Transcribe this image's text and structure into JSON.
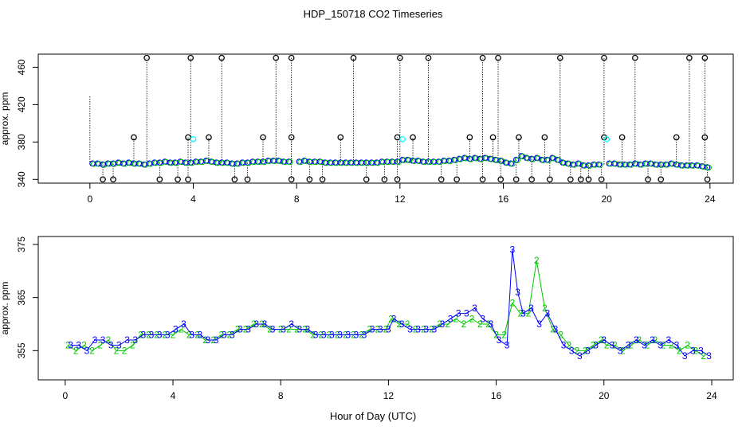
{
  "title": "HDP_150718  CO2 Timeseries",
  "xlabel": "Hour of Day (UTC)",
  "colors": {
    "series2": "#00c800",
    "series3": "#0000ff",
    "flagged": "#00ffff",
    "outlier": "#000000",
    "axis": "#000000"
  },
  "chart_data": [
    {
      "type": "scatter",
      "title": "",
      "xlabel": "",
      "ylabel": "approx. ppm",
      "xlim": [
        -2,
        24.9
      ],
      "ylim": [
        336,
        474
      ],
      "xticks": [
        0,
        4,
        8,
        12,
        16,
        20,
        24
      ],
      "yticks": [
        340,
        380,
        420,
        460
      ],
      "grid": false,
      "series": [
        {
          "marker": "o",
          "points": [
            [
              0.1,
              357
            ],
            [
              0.3,
              357
            ],
            [
              0.5,
              356
            ],
            [
              0.7,
              357
            ],
            [
              0.9,
              357
            ],
            [
              1.1,
              358
            ],
            [
              1.3,
              357
            ],
            [
              1.5,
              358
            ],
            [
              1.7,
              357
            ],
            [
              1.9,
              357
            ],
            [
              2.1,
              356
            ],
            [
              2.3,
              357
            ],
            [
              2.5,
              358
            ],
            [
              2.7,
              358
            ],
            [
              2.9,
              359
            ],
            [
              3.1,
              358
            ],
            [
              3.3,
              358
            ],
            [
              3.5,
              359
            ],
            [
              3.7,
              358
            ],
            [
              3.9,
              358
            ],
            [
              4.1,
              359
            ],
            [
              4.3,
              359
            ],
            [
              4.5,
              360
            ],
            [
              4.7,
              359
            ],
            [
              4.9,
              358
            ],
            [
              5.1,
              358
            ],
            [
              5.3,
              358
            ],
            [
              5.5,
              357
            ],
            [
              5.7,
              357
            ],
            [
              5.9,
              358
            ],
            [
              6.1,
              358
            ],
            [
              6.3,
              359
            ],
            [
              6.5,
              359
            ],
            [
              6.7,
              359
            ],
            [
              6.9,
              360
            ],
            [
              7.1,
              360
            ],
            [
              7.3,
              360
            ],
            [
              7.5,
              359
            ],
            [
              7.7,
              359
            ],
            [
              8.1,
              359
            ],
            [
              8.3,
              360
            ],
            [
              8.5,
              359
            ],
            [
              8.7,
              359
            ],
            [
              8.9,
              359
            ],
            [
              9.1,
              358
            ],
            [
              9.3,
              358
            ],
            [
              9.5,
              358
            ],
            [
              9.7,
              358
            ],
            [
              9.9,
              358
            ],
            [
              10.1,
              358
            ],
            [
              10.3,
              358
            ],
            [
              10.5,
              358
            ],
            [
              10.7,
              358
            ],
            [
              10.9,
              358
            ],
            [
              11.1,
              358
            ],
            [
              11.3,
              359
            ],
            [
              11.5,
              359
            ],
            [
              11.7,
              359
            ],
            [
              11.9,
              359
            ],
            [
              12.1,
              361
            ],
            [
              12.3,
              361
            ],
            [
              12.5,
              360
            ],
            [
              12.7,
              360
            ],
            [
              12.9,
              359
            ],
            [
              13.1,
              359
            ],
            [
              13.3,
              359
            ],
            [
              13.5,
              359
            ],
            [
              13.7,
              360
            ],
            [
              13.9,
              360
            ],
            [
              14.1,
              361
            ],
            [
              14.3,
              362
            ],
            [
              14.5,
              363
            ],
            [
              14.7,
              362
            ],
            [
              14.9,
              363
            ],
            [
              15.1,
              362
            ],
            [
              15.3,
              363
            ],
            [
              15.5,
              362
            ],
            [
              15.7,
              361
            ],
            [
              15.9,
              360
            ],
            [
              16.1,
              358
            ],
            [
              16.3,
              357
            ],
            [
              16.5,
              361
            ],
            [
              16.7,
              365
            ],
            [
              16.9,
              363
            ],
            [
              17.1,
              362
            ],
            [
              17.3,
              363
            ],
            [
              17.5,
              361
            ],
            [
              17.7,
              361
            ],
            [
              17.9,
              363
            ],
            [
              18.1,
              361
            ],
            [
              18.3,
              358
            ],
            [
              18.5,
              357
            ],
            [
              18.7,
              356
            ],
            [
              18.9,
              357
            ],
            [
              19.1,
              355
            ],
            [
              19.3,
              355
            ],
            [
              19.5,
              356
            ],
            [
              19.7,
              356
            ],
            [
              20.1,
              357
            ],
            [
              20.3,
              357
            ],
            [
              20.5,
              356
            ],
            [
              20.7,
              356
            ],
            [
              20.9,
              356
            ],
            [
              21.1,
              357
            ],
            [
              21.3,
              356
            ],
            [
              21.5,
              357
            ],
            [
              21.7,
              357
            ],
            [
              21.9,
              356
            ],
            [
              22.1,
              356
            ],
            [
              22.3,
              356
            ],
            [
              22.5,
              357
            ],
            [
              22.7,
              356
            ],
            [
              22.9,
              355
            ],
            [
              23.1,
              355
            ],
            [
              23.3,
              355
            ],
            [
              23.5,
              355
            ],
            [
              23.7,
              354
            ],
            [
              23.9,
              353
            ]
          ]
        },
        {
          "marker": "o",
          "name": "",
          "outliers_high": [
            2.2,
            3.9,
            5.1,
            7.2,
            7.8,
            10.2,
            12.0,
            13.1,
            15.2,
            15.8,
            18.2,
            19.9,
            21.1,
            23.2,
            23.8
          ],
          "outliers_mid": [
            1.7,
            3.8,
            4.6,
            6.7,
            7.8,
            9.7,
            11.9,
            12.5,
            14.7,
            15.6,
            16.6,
            17.6,
            19.9,
            20.6,
            22.7,
            23.8
          ],
          "outliers_low": [
            0.5,
            0.9,
            2.7,
            3.4,
            3.8,
            5.6,
            6.1,
            7.8,
            8.5,
            9.0,
            10.7,
            11.4,
            11.9,
            13.6,
            14.2,
            15.2,
            15.9,
            16.5,
            17.1,
            17.8,
            18.6,
            19.0,
            19.3,
            19.8,
            21.6,
            22.1,
            23.9
          ]
        }
      ]
    },
    {
      "type": "line",
      "title": "",
      "xlabel": "Hour of Day (UTC)",
      "ylabel": "approx. ppm",
      "xlim": [
        -1,
        24.8
      ],
      "ylim": [
        349.5,
        376.5
      ],
      "xticks": [
        0,
        4,
        8,
        12,
        16,
        20,
        24
      ],
      "yticks": [
        355,
        365,
        375
      ],
      "grid": false,
      "series": [
        {
          "marker": "2",
          "x": [
            0.1,
            0.4,
            0.7,
            1.0,
            1.3,
            1.6,
            1.9,
            2.2,
            2.5,
            2.8,
            3.1,
            3.4,
            3.7,
            4.0,
            4.3,
            4.6,
            4.9,
            5.2,
            5.5,
            5.8,
            6.1,
            6.4,
            6.7,
            7.0,
            7.3,
            7.6,
            8.0,
            8.3,
            8.6,
            8.9,
            9.2,
            9.5,
            9.8,
            10.1,
            10.4,
            10.7,
            11.0,
            11.3,
            11.6,
            11.9,
            12.1,
            12.4,
            12.7,
            13.0,
            13.3,
            13.6,
            13.9,
            14.2,
            14.5,
            14.8,
            15.1,
            15.4,
            15.7,
            16.0,
            16.3,
            16.6,
            16.9,
            17.2,
            17.5,
            17.8,
            18.1,
            18.4,
            18.7,
            19.0,
            19.3,
            19.6,
            19.9,
            20.1,
            20.4,
            20.7,
            21.0,
            21.3,
            21.6,
            21.9,
            22.2,
            22.5,
            22.8,
            23.1,
            23.4,
            23.7
          ],
          "values": [
            356,
            355,
            356,
            355,
            356,
            357,
            355,
            355,
            356,
            358,
            358,
            358,
            358,
            358,
            359,
            358,
            358,
            357,
            357,
            358,
            358,
            359,
            359,
            360,
            360,
            359,
            359,
            359,
            359,
            359,
            358,
            358,
            358,
            358,
            358,
            358,
            358,
            359,
            359,
            359,
            361,
            360,
            360,
            359,
            359,
            359,
            360,
            360,
            361,
            360,
            361,
            360,
            360,
            358,
            358,
            364,
            362,
            362,
            372,
            363,
            359,
            358,
            356,
            355,
            355,
            356,
            357,
            356,
            356,
            355,
            356,
            357,
            356,
            357,
            356,
            356,
            355,
            356,
            355,
            354
          ]
        },
        {
          "marker": "3",
          "x": [
            0.2,
            0.5,
            0.8,
            1.1,
            1.4,
            1.7,
            2.0,
            2.3,
            2.6,
            2.9,
            3.2,
            3.5,
            3.8,
            4.1,
            4.4,
            4.7,
            5.0,
            5.3,
            5.6,
            5.9,
            6.2,
            6.5,
            6.8,
            7.1,
            7.4,
            7.7,
            8.1,
            8.4,
            8.7,
            9.0,
            9.3,
            9.6,
            9.9,
            10.2,
            10.5,
            10.8,
            11.1,
            11.4,
            11.7,
            12.0,
            12.2,
            12.5,
            12.8,
            13.1,
            13.4,
            13.7,
            14.0,
            14.3,
            14.6,
            14.9,
            15.2,
            15.5,
            15.8,
            16.1,
            16.4,
            16.6,
            16.8,
            17.0,
            17.3,
            17.6,
            17.9,
            18.2,
            18.5,
            18.8,
            19.1,
            19.4,
            19.7,
            20.0,
            20.3,
            20.6,
            20.9,
            21.2,
            21.5,
            21.8,
            22.1,
            22.4,
            22.7,
            23.0,
            23.3,
            23.6,
            23.9
          ],
          "values": [
            356,
            356,
            355,
            357,
            357,
            356,
            356,
            357,
            357,
            358,
            358,
            358,
            358,
            359,
            360,
            358,
            358,
            357,
            357,
            358,
            358,
            359,
            359,
            360,
            360,
            359,
            359,
            360,
            359,
            359,
            358,
            358,
            358,
            358,
            358,
            358,
            358,
            359,
            359,
            359,
            361,
            360,
            359,
            359,
            359,
            359,
            360,
            361,
            362,
            362,
            363,
            361,
            360,
            357,
            356,
            374,
            366,
            362,
            363,
            360,
            362,
            359,
            356,
            355,
            354,
            355,
            356,
            357,
            356,
            355,
            356,
            357,
            356,
            357,
            356,
            357,
            356,
            354,
            355,
            355,
            354
          ]
        }
      ]
    }
  ]
}
